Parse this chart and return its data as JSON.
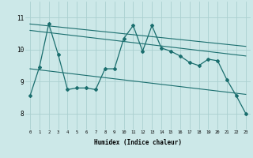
{
  "xlabel": "Humidex (Indice chaleur)",
  "ylabel": "",
  "bg_color": "#cce8e8",
  "line_color": "#1a6e6e",
  "grid_color": "#aad0d0",
  "xlim": [
    -0.5,
    23.5
  ],
  "ylim": [
    7.5,
    11.5
  ],
  "yticks": [
    8,
    9,
    10,
    11
  ],
  "xticks": [
    0,
    1,
    2,
    3,
    4,
    5,
    6,
    7,
    8,
    9,
    10,
    11,
    12,
    13,
    14,
    15,
    16,
    17,
    18,
    19,
    20,
    21,
    22,
    23
  ],
  "series1_x": [
    0,
    1,
    2,
    3,
    4,
    5,
    6,
    7,
    8,
    9,
    10,
    11,
    12,
    13,
    14,
    15,
    16,
    17,
    18,
    19,
    20,
    21,
    22,
    23
  ],
  "series1_y": [
    8.55,
    9.45,
    10.8,
    9.85,
    8.75,
    8.8,
    8.8,
    8.75,
    9.4,
    9.4,
    10.35,
    10.75,
    9.95,
    10.75,
    10.05,
    9.95,
    9.8,
    9.6,
    9.5,
    9.7,
    9.65,
    9.05,
    8.55,
    8.0
  ],
  "trend1_x": [
    0,
    23
  ],
  "trend1_y": [
    10.8,
    10.1
  ],
  "trend2_x": [
    0,
    23
  ],
  "trend2_y": [
    9.4,
    8.6
  ],
  "trend3_x": [
    0,
    23
  ],
  "trend3_y": [
    10.6,
    9.8
  ]
}
